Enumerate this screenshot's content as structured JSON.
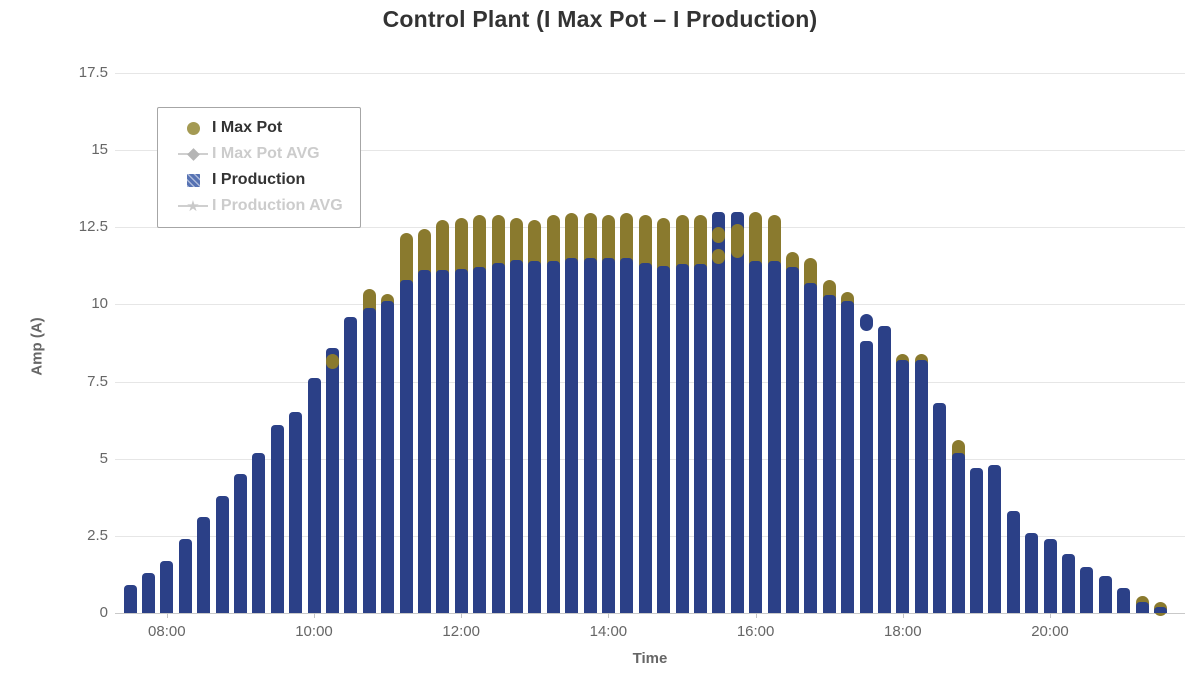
{
  "page": {
    "background": "#ffffff"
  },
  "chart_data": {
    "type": "bar",
    "title": "Control Plant (I Max Pot – I Production)",
    "xlabel": "Time",
    "ylabel": "Amp (A)",
    "ylim": [
      0,
      17.5
    ],
    "grid": true,
    "legend_position": "top-left-inside",
    "interval_minutes": 15,
    "colors": {
      "production_bar": "#2b4087",
      "max_pot_dot": "#8a7a2e",
      "legend_circle": "#a49a53",
      "legend_square": "#5672b3",
      "grid": "#e6e6e6",
      "axis": "#c9c9c9",
      "tick_label": "#666666",
      "title": "#333333",
      "disabled": "#cccccc"
    },
    "yticks": [
      {
        "label": "0",
        "value": 0
      },
      {
        "label": "2.5",
        "value": 2.5
      },
      {
        "label": "5",
        "value": 5
      },
      {
        "label": "7.5",
        "value": 7.5
      },
      {
        "label": "10",
        "value": 10
      },
      {
        "label": "12.5",
        "value": 12.5
      },
      {
        "label": "15",
        "value": 15
      },
      {
        "label": "17.5",
        "value": 17.5
      }
    ],
    "xticks": [
      {
        "label": "08:00",
        "index": 2
      },
      {
        "label": "10:00",
        "index": 10
      },
      {
        "label": "12:00",
        "index": 18
      },
      {
        "label": "14:00",
        "index": 26
      },
      {
        "label": "16:00",
        "index": 34
      },
      {
        "label": "18:00",
        "index": 42
      },
      {
        "label": "20:00",
        "index": 50
      }
    ],
    "legend": [
      {
        "label": "I Max Pot",
        "marker": "circle",
        "enabled": true
      },
      {
        "label": "I Max Pot AVG",
        "marker": "diamond-line",
        "enabled": false
      },
      {
        "label": "I Production",
        "marker": "square",
        "enabled": true
      },
      {
        "label": "I Production AVG",
        "marker": "star-line",
        "enabled": false
      }
    ],
    "points": [
      {
        "t": "07:30",
        "prod": 0.9
      },
      {
        "t": "07:45",
        "prod": 1.3
      },
      {
        "t": "08:00",
        "prod": 1.7
      },
      {
        "t": "08:15",
        "prod": 2.4
      },
      {
        "t": "08:30",
        "prod": 3.1
      },
      {
        "t": "08:45",
        "prod": 3.8
      },
      {
        "t": "09:00",
        "prod": 4.5
      },
      {
        "t": "09:15",
        "prod": 5.2
      },
      {
        "t": "09:30",
        "prod": 6.1
      },
      {
        "t": "09:45",
        "prod": 6.5
      },
      {
        "t": "10:00",
        "prod": 7.6
      },
      {
        "t": "10:15",
        "prod": 8.6,
        "max_bands": [
          [
            7.9,
            8.4
          ]
        ]
      },
      {
        "t": "10:30",
        "prod": 9.6
      },
      {
        "t": "10:45",
        "prod": 9.9,
        "max": 10.5
      },
      {
        "t": "11:00",
        "prod": 10.1,
        "max": 10.35
      },
      {
        "t": "11:15",
        "prod": 10.8,
        "max": 12.3
      },
      {
        "t": "11:30",
        "prod": 11.1,
        "max": 12.45
      },
      {
        "t": "11:45",
        "prod": 11.1,
        "max": 12.75
      },
      {
        "t": "12:00",
        "prod": 11.15,
        "max": 12.8
      },
      {
        "t": "12:15",
        "prod": 11.2,
        "max": 12.9
      },
      {
        "t": "12:30",
        "prod": 11.35,
        "max": 12.9
      },
      {
        "t": "12:45",
        "prod": 11.45,
        "max": 12.8
      },
      {
        "t": "13:00",
        "prod": 11.4,
        "max": 12.75
      },
      {
        "t": "13:15",
        "prod": 11.4,
        "max": 12.9
      },
      {
        "t": "13:30",
        "prod": 11.5,
        "max": 12.95
      },
      {
        "t": "13:45",
        "prod": 11.5,
        "max": 12.95
      },
      {
        "t": "14:00",
        "prod": 11.5,
        "max": 12.9
      },
      {
        "t": "14:15",
        "prod": 11.5,
        "max": 12.95
      },
      {
        "t": "14:30",
        "prod": 11.35,
        "max": 12.9
      },
      {
        "t": "14:45",
        "prod": 11.25,
        "max": 12.8
      },
      {
        "t": "15:00",
        "prod": 11.3,
        "max": 12.9
      },
      {
        "t": "15:15",
        "prod": 11.3,
        "max": 12.9
      },
      {
        "t": "15:30",
        "prod": 13.0,
        "max_bands": [
          [
            11.3,
            11.8
          ],
          [
            12.0,
            12.5
          ]
        ]
      },
      {
        "t": "15:45",
        "prod": 13.0,
        "max_bands": [
          [
            11.5,
            12.6
          ]
        ]
      },
      {
        "t": "16:00",
        "prod": 11.4,
        "max": 13.0
      },
      {
        "t": "16:15",
        "prod": 11.4,
        "max": 12.9
      },
      {
        "t": "16:30",
        "prod": 11.2,
        "max": 11.7
      },
      {
        "t": "16:45",
        "prod": 10.7,
        "max": 11.5
      },
      {
        "t": "17:00",
        "prod": 10.3,
        "max": 10.8
      },
      {
        "t": "17:15",
        "prod": 10.1,
        "max": 10.4
      },
      {
        "t": "17:30",
        "prod": 8.8,
        "prod_bands": [
          [
            9.15,
            9.7
          ]
        ]
      },
      {
        "t": "17:45",
        "prod": 9.3
      },
      {
        "t": "18:00",
        "prod": 8.2,
        "max": 8.4
      },
      {
        "t": "18:15",
        "prod": 8.2,
        "max": 8.4
      },
      {
        "t": "18:30",
        "prod": 6.8
      },
      {
        "t": "18:45",
        "prod": 5.2,
        "max": 5.6
      },
      {
        "t": "19:00",
        "prod": 4.7
      },
      {
        "t": "19:15",
        "prod": 4.8
      },
      {
        "t": "19:30",
        "prod": 3.3
      },
      {
        "t": "19:45",
        "prod": 2.6
      },
      {
        "t": "20:00",
        "prod": 2.4
      },
      {
        "t": "20:15",
        "prod": 1.9
      },
      {
        "t": "20:30",
        "prod": 1.5
      },
      {
        "t": "20:45",
        "prod": 1.2
      },
      {
        "t": "21:00",
        "prod": 0.8
      },
      {
        "t": "21:15",
        "prod": 0.35,
        "max": 0.55
      },
      {
        "t": "21:30",
        "prod": 0.2,
        "max": 0.35
      }
    ]
  }
}
